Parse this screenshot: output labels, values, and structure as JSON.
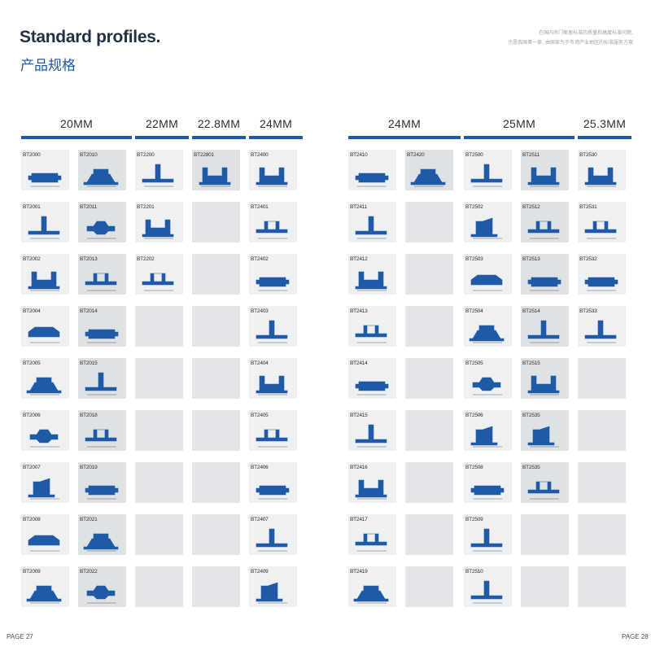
{
  "header": {
    "title": "Standard profiles.",
    "subtitle": "产品规格",
    "note_lines": [
      "在国内吊门家居标准的质量和高度标准问题,",
      "也是我国第一家, 由国家为于市场产业地区的标准服务方案"
    ]
  },
  "colors": {
    "profile": "#1f5aa6",
    "bar": "#1f5aa6",
    "cell": "#eef0f2",
    "cell_dark": "#dfe2e5"
  },
  "left_page": {
    "page_label": "PAGE 27",
    "groups": [
      {
        "label": "20MM"
      },
      {
        "label": "22MM"
      },
      {
        "label": "22.8MM"
      },
      {
        "label": "24MM"
      }
    ],
    "columns": [
      [
        "BT2000",
        "BT2001",
        "BT2002",
        "BT2004",
        "BT2005",
        "BT2006",
        "BT2007",
        "BT2008",
        "BT2009"
      ],
      [
        "BT2010",
        "BT2011",
        "BT2013",
        "BT2014",
        "BT2015",
        "BT2018",
        "BT2019",
        "BT2021",
        "BT2022"
      ],
      [
        "BT2200",
        "BT2201",
        "BT2202",
        "",
        "",
        "",
        "",
        "",
        ""
      ],
      [
        "BT22801",
        "",
        "",
        "",
        "",
        "",
        "",
        "",
        ""
      ],
      [
        "BT2400",
        "BT2401",
        "BT2402",
        "BT2403",
        "BT2404",
        "BT2405",
        "BT2406",
        "BT2407",
        "BT2409"
      ]
    ]
  },
  "right_page": {
    "page_label": "PAGE 28",
    "groups": [
      {
        "label": "24MM"
      },
      {
        "label": "25MM"
      },
      {
        "label": "25.3MM"
      }
    ],
    "columns": [
      [
        "BT2410",
        "BT2411",
        "BT2412",
        "BT2413",
        "BT2414",
        "BT2415",
        "BT2416",
        "BT2417",
        "BT2419"
      ],
      [
        "BT2420",
        "",
        "",
        "",
        "",
        "",
        "",
        "",
        ""
      ],
      [
        "BT2500",
        "BT2502",
        "BT2503",
        "BT2504",
        "BT2505",
        "BT2506",
        "BT2508",
        "BT2509",
        "BT2510"
      ],
      [
        "BT2511",
        "BT2512",
        "BT2513",
        "BT2514",
        "BT2515",
        "BT2535",
        "BT2535",
        "",
        ""
      ],
      [
        "BT2530",
        "BT2531",
        "BT2532",
        "BT2533",
        "",
        "",
        "",
        "",
        ""
      ]
    ]
  }
}
